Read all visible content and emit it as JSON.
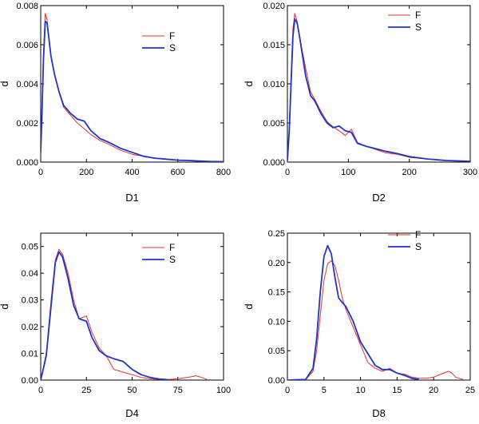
{
  "chart_data": [
    {
      "type": "line",
      "xlabel": "D1",
      "ylabel": "d",
      "xlim": [
        0,
        800
      ],
      "ylim": [
        0,
        0.008
      ],
      "xticks": [
        0,
        200,
        400,
        600,
        800
      ],
      "yticks": [
        0.0,
        0.002,
        0.004,
        0.006,
        0.008
      ],
      "xtick_labels": [
        "0",
        "200",
        "400",
        "600",
        "800"
      ],
      "ytick_labels": [
        "0.000",
        "0.002",
        "0.004",
        "0.006",
        "0.008"
      ],
      "legend_position": "upper-right",
      "series": [
        {
          "name": "F",
          "color": "#e8302c",
          "x": [
            0,
            5,
            12,
            20,
            28,
            35,
            45,
            60,
            80,
            100,
            130,
            160,
            190,
            220,
            260,
            300,
            350,
            400,
            450,
            500,
            550,
            600,
            650,
            700,
            750,
            800
          ],
          "y": [
            0.0005,
            0.0025,
            0.0055,
            0.0076,
            0.0073,
            0.0064,
            0.0054,
            0.0045,
            0.0036,
            0.0028,
            0.0024,
            0.002,
            0.0017,
            0.0014,
            0.0011,
            0.0009,
            0.0006,
            0.0004,
            0.0003,
            0.0002,
            0.00015,
            0.0001,
            8e-05,
            5e-05,
            3e-05,
            2e-05
          ]
        },
        {
          "name": "S",
          "color": "#2233cc",
          "x": [
            0,
            5,
            12,
            20,
            28,
            35,
            45,
            60,
            80,
            100,
            130,
            160,
            190,
            220,
            260,
            300,
            350,
            400,
            450,
            500,
            550,
            600,
            650,
            700,
            750,
            800
          ],
          "y": [
            0.0005,
            0.0022,
            0.0052,
            0.0072,
            0.0071,
            0.0064,
            0.0054,
            0.0045,
            0.0036,
            0.0029,
            0.0025,
            0.0022,
            0.0021,
            0.0016,
            0.0012,
            0.001,
            0.0007,
            0.0005,
            0.0003,
            0.0002,
            0.00015,
            0.0001,
            8e-05,
            5e-05,
            3e-05,
            2e-05
          ]
        }
      ]
    },
    {
      "type": "line",
      "xlabel": "D2",
      "ylabel": "d",
      "xlim": [
        0,
        300
      ],
      "ylim": [
        0,
        0.02
      ],
      "xticks": [
        0,
        100,
        200,
        300
      ],
      "yticks": [
        0.0,
        0.005,
        0.01,
        0.015,
        0.02
      ],
      "xtick_labels": [
        "0",
        "100",
        "200",
        "300"
      ],
      "ytick_labels": [
        "0.000",
        "0.005",
        "0.010",
        "0.015",
        "0.020"
      ],
      "legend_position": "upper-right",
      "series": [
        {
          "name": "F",
          "color": "#e8302c",
          "x": [
            0,
            3,
            6,
            9,
            12,
            16,
            20,
            25,
            30,
            38,
            45,
            55,
            65,
            75,
            85,
            95,
            105,
            115,
            130,
            145,
            160,
            180,
            200,
            230,
            260,
            300
          ],
          "y": [
            0.0002,
            0.004,
            0.011,
            0.017,
            0.019,
            0.018,
            0.016,
            0.014,
            0.012,
            0.009,
            0.008,
            0.0065,
            0.0052,
            0.0045,
            0.004,
            0.0034,
            0.0042,
            0.0025,
            0.002,
            0.0016,
            0.0012,
            0.001,
            0.0006,
            0.0004,
            0.0002,
            0.0001
          ]
        },
        {
          "name": "S",
          "color": "#2233cc",
          "x": [
            0,
            3,
            6,
            9,
            12,
            16,
            20,
            25,
            30,
            38,
            45,
            55,
            65,
            75,
            85,
            95,
            105,
            115,
            130,
            145,
            160,
            180,
            200,
            230,
            260,
            300
          ],
          "y": [
            0.0002,
            0.004,
            0.01,
            0.016,
            0.0183,
            0.0178,
            0.016,
            0.0135,
            0.011,
            0.0085,
            0.0078,
            0.0062,
            0.005,
            0.0044,
            0.0046,
            0.004,
            0.0038,
            0.0024,
            0.002,
            0.0017,
            0.0014,
            0.0011,
            0.0007,
            0.0004,
            0.0002,
            0.0001
          ]
        }
      ]
    },
    {
      "type": "line",
      "xlabel": "D4",
      "ylabel": "d",
      "xlim": [
        0,
        100
      ],
      "ylim": [
        0,
        0.055
      ],
      "xticks": [
        0,
        25,
        50,
        75,
        100
      ],
      "yticks": [
        0.0,
        0.01,
        0.02,
        0.03,
        0.04,
        0.05
      ],
      "xtick_labels": [
        "0",
        "25",
        "50",
        "75",
        "100"
      ],
      "ytick_labels": [
        "0.00",
        "0.01",
        "0.02",
        "0.03",
        "0.04",
        "0.05"
      ],
      "legend_position": "upper-right",
      "series": [
        {
          "name": "F",
          "color": "#e8302c",
          "x": [
            0,
            3,
            6,
            8,
            10,
            12,
            15,
            18,
            21,
            25,
            28,
            32,
            36,
            40,
            45,
            50,
            55,
            60,
            65,
            70,
            75,
            80,
            85,
            88,
            91
          ],
          "y": [
            0.0,
            0.01,
            0.032,
            0.045,
            0.049,
            0.047,
            0.04,
            0.03,
            0.023,
            0.024,
            0.018,
            0.012,
            0.009,
            0.004,
            0.003,
            0.002,
            0.001,
            0.0005,
            0.0002,
            0.0002,
            0.0005,
            0.001,
            0.0016,
            0.001,
            0.0002
          ]
        },
        {
          "name": "S",
          "color": "#2233cc",
          "x": [
            0,
            3,
            6,
            8,
            10,
            12,
            15,
            18,
            21,
            25,
            28,
            32,
            36,
            40,
            45,
            50,
            55,
            60,
            65,
            70
          ],
          "y": [
            0.0,
            0.009,
            0.03,
            0.044,
            0.048,
            0.046,
            0.038,
            0.028,
            0.023,
            0.022,
            0.016,
            0.011,
            0.009,
            0.008,
            0.007,
            0.004,
            0.002,
            0.001,
            0.0004,
            0.0001
          ]
        }
      ]
    },
    {
      "type": "line",
      "xlabel": "D8",
      "ylabel": "d",
      "xlim": [
        0,
        25
      ],
      "ylim": [
        0,
        0.25
      ],
      "xticks": [
        0,
        5,
        10,
        15,
        20,
        25
      ],
      "yticks": [
        0.0,
        0.05,
        0.1,
        0.15,
        0.2,
        0.25
      ],
      "xtick_labels": [
        "0",
        "5",
        "10",
        "15",
        "20",
        "25"
      ],
      "ytick_labels": [
        "0.00",
        "0.05",
        "0.10",
        "0.15",
        "0.20",
        "0.25"
      ],
      "legend_position": "upper-right",
      "series": [
        {
          "name": "F",
          "color": "#e8302c",
          "x": [
            0,
            2.5,
            3.5,
            4.0,
            4.5,
            5.0,
            5.5,
            6.0,
            6.5,
            7.0,
            7.5,
            8.0,
            9.0,
            10.0,
            11.0,
            12.0,
            13.0,
            14.0,
            15.0,
            16.0,
            17.0,
            18.0,
            19.0,
            20.0,
            21.0,
            22.0,
            22.5,
            23.0,
            24.0
          ],
          "y": [
            0.0,
            0.001,
            0.015,
            0.05,
            0.11,
            0.17,
            0.198,
            0.203,
            0.195,
            0.17,
            0.14,
            0.12,
            0.09,
            0.06,
            0.03,
            0.02,
            0.015,
            0.02,
            0.012,
            0.01,
            0.005,
            0.003,
            0.003,
            0.005,
            0.01,
            0.015,
            0.012,
            0.005,
            0.001
          ]
        },
        {
          "name": "S",
          "color": "#2233cc",
          "x": [
            0,
            2.5,
            3.5,
            4.0,
            4.5,
            5.0,
            5.5,
            6.0,
            6.5,
            7.0,
            7.5,
            8.0,
            9.0,
            10.0,
            11.0,
            12.0,
            13.0,
            14.0,
            15.0,
            16.0,
            17.0,
            18.0
          ],
          "y": [
            0.0,
            0.001,
            0.02,
            0.07,
            0.15,
            0.21,
            0.229,
            0.215,
            0.175,
            0.14,
            0.132,
            0.125,
            0.1,
            0.065,
            0.045,
            0.025,
            0.018,
            0.018,
            0.012,
            0.008,
            0.003,
            0.001
          ]
        }
      ]
    }
  ]
}
